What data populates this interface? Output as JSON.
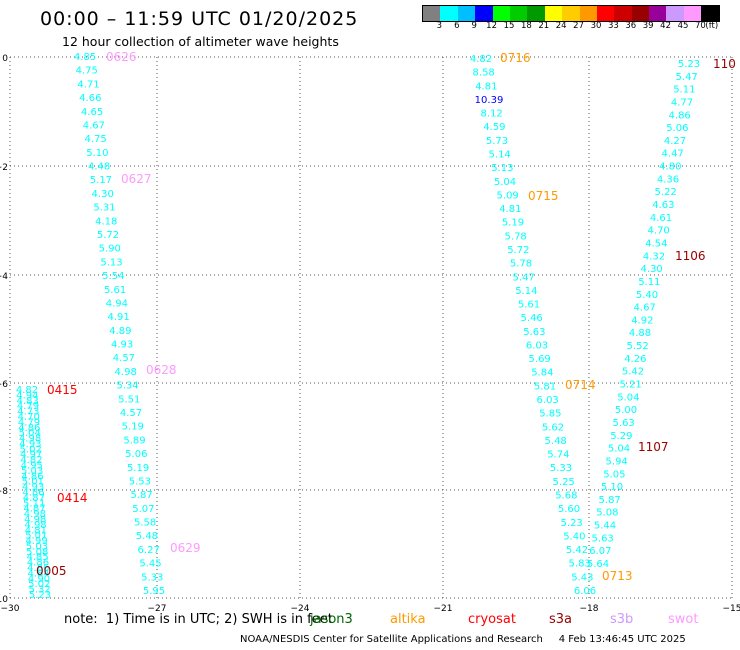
{
  "title": "00:00 – 11:59 UTC 01/20/2025",
  "subtitle": "12 hour collection of altimeter wave heights",
  "legend": {
    "colors": [
      "#808080",
      "#00ffff",
      "#00bfff",
      "#0000ff",
      "#00ff00",
      "#00cc00",
      "#009900",
      "#ffff00",
      "#ffcc00",
      "#ff9900",
      "#ff0000",
      "#cc0000",
      "#990000",
      "#990099",
      "#cc99ff",
      "#ff99ff",
      "#000000"
    ],
    "ticks": [
      "3",
      "6",
      "9",
      "12",
      "15",
      "18",
      "21",
      "24",
      "27",
      "30",
      "33",
      "36",
      "39",
      "42",
      "45",
      "70",
      "(ft)"
    ]
  },
  "axes": {
    "x_ticks": [
      "−30",
      "−27",
      "−24",
      "−21",
      "−18",
      "−15"
    ],
    "y_ticks": [
      "0",
      "−2",
      "−4",
      "−6",
      "−8",
      "−10"
    ]
  },
  "note": "note:  1) Time is in UTC; 2) SWH is in feet",
  "satellites": [
    {
      "name": "jason3",
      "color": "#006400"
    },
    {
      "name": "altika",
      "color": "#ff9900"
    },
    {
      "name": "cryosat",
      "color": "#ff0000"
    },
    {
      "name": "s3a",
      "color": "#990000"
    },
    {
      "name": "s3b",
      "color": "#cc99ff"
    },
    {
      "name": "swot",
      "color": "#ff99ff"
    }
  ],
  "credit": "NOAA/NESDIS Center for Satellite Applications and Research     4 Feb 13:46:45 UTC 2025",
  "time_labels": [
    {
      "text": "0626",
      "color": "#ff99ff"
    },
    {
      "text": "0627",
      "color": "#ff99ff"
    },
    {
      "text": "0628",
      "color": "#ff99ff"
    },
    {
      "text": "0629",
      "color": "#ff99ff"
    },
    {
      "text": "0716",
      "color": "#ff9900"
    },
    {
      "text": "0715",
      "color": "#ff9900"
    },
    {
      "text": "0714",
      "color": "#ff9900"
    },
    {
      "text": "0713",
      "color": "#ff9900"
    },
    {
      "text": "110",
      "color": "#990000"
    },
    {
      "text": "1106",
      "color": "#990000"
    },
    {
      "text": "1107",
      "color": "#990000"
    },
    {
      "text": "0415",
      "color": "#ff0000"
    },
    {
      "text": "0414",
      "color": "#ff0000"
    },
    {
      "text": "0005",
      "color": "#990000"
    }
  ],
  "tracks": {
    "swot": {
      "color": "#00ffff",
      "values": [
        "4.85",
        "4.75",
        "4.71",
        "4.66",
        "4.65",
        "4.67",
        "4.75",
        "5.10",
        "4.48",
        "5.17",
        "4.30",
        "5.31",
        "4.18",
        "5.72",
        "5.90",
        "5.13",
        "5.54",
        "5.61",
        "4.94",
        "4.91",
        "4.89",
        "4.93",
        "4.57",
        "4.98",
        "5.34",
        "5.51",
        "4.57",
        "5.19",
        "5.89",
        "5.06",
        "5.19",
        "5.53",
        "5.87",
        "5.07",
        "5.58",
        "5.48",
        "6.27",
        "5.45",
        "5.33",
        "5.95"
      ]
    },
    "altika": {
      "color": "#00ffff",
      "values": [
        "4.82",
        "8.58",
        "4.81",
        "10.39",
        "8.12",
        "4.59",
        "5.73",
        "5.14",
        "5.13",
        "5.04",
        "5.09",
        "4.81",
        "5.19",
        "5.78",
        "5.72",
        "5.78",
        "5.47",
        "5.14",
        "5.61",
        "5.46",
        "5.63",
        "6.03",
        "5.69",
        "5.84",
        "5.81",
        "6.03",
        "5.85",
        "5.62",
        "5.48",
        "5.74",
        "5.33",
        "5.25",
        "5.68",
        "5.60",
        "5.23",
        "5.40",
        "5.42",
        "5.83",
        "5.43",
        "6.06"
      ],
      "special": {
        "3": "#0000ff"
      }
    },
    "s3a": {
      "color": "#00ffff",
      "values": [
        "5.23",
        "5.47",
        "5.11",
        "4.77",
        "4.86",
        "5.06",
        "4.27",
        "4.47",
        "4.80",
        "4.36",
        "5.22",
        "4.63",
        "4.61",
        "4.70",
        "4.54",
        "4.32",
        "4.30",
        "5.11",
        "5.40",
        "4.67",
        "4.92",
        "4.88",
        "5.52",
        "4.26",
        "5.42",
        "5.21",
        "5.04",
        "5.00",
        "5.63",
        "5.29",
        "5.04",
        "5.94",
        "5.05",
        "5.10",
        "5.87",
        "5.08",
        "5.44",
        "5.63",
        "6.07",
        "5.64"
      ]
    },
    "cryosat": {
      "color": "#00ffff",
      "values": [
        "4.82",
        "4.94",
        "4.83",
        "4.79",
        "4.73",
        "4.70",
        "4.79",
        "4.86",
        "5.04",
        "4.98",
        "4.93",
        "5.02",
        "4.97",
        "4.82",
        "4.95",
        "5.03",
        "4.86",
        "5.01",
        "4.93",
        "4.86",
        "4.87",
        "5.11",
        "4.87",
        "4.98",
        "4.98",
        "4.98",
        "4.81",
        "5.01",
        "4.99",
        "5.03",
        "5.08",
        "4.85",
        "4.86",
        "4.86",
        "4.84",
        "4.90",
        "5.02",
        "5.32",
        "5.23"
      ]
    }
  }
}
